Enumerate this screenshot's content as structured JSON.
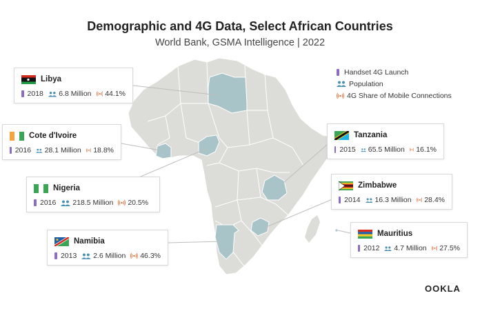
{
  "header": {
    "title": "Demographic and 4G Data, Select African Countries",
    "subtitle": "World Bank, GSMA Intelligence | 2022"
  },
  "legend": {
    "handset_label": "Handset 4G Launch",
    "population_label": "Population",
    "share_label": "4G Share of Mobile Connections"
  },
  "colors": {
    "land": "#dcdcd8",
    "highlight": "#a9c4c9",
    "border": "#ffffff",
    "phone_icon": "#8b6bc6",
    "people_icon": "#4a8fb3",
    "signal_icon": "#e07a4a"
  },
  "countries": [
    {
      "name": "Libya",
      "year": "2018",
      "population": "6.8 Million",
      "share": "44.1%",
      "flag": "libya-flag-icon"
    },
    {
      "name": "Cote d'Ivoire",
      "year": "2016",
      "population": "28.1 Million",
      "share": "18.8%",
      "flag": "cote-divoire-flag-icon"
    },
    {
      "name": "Nigeria",
      "year": "2016",
      "population": "218.5 Million",
      "share": "20.5%",
      "flag": "nigeria-flag-icon"
    },
    {
      "name": "Namibia",
      "year": "2013",
      "population": "2.6 Million",
      "share": "46.3%",
      "flag": "namibia-flag-icon"
    },
    {
      "name": "Tanzania",
      "year": "2015",
      "population": "65.5 Million",
      "share": "16.1%",
      "flag": "tanzania-flag-icon"
    },
    {
      "name": "Zimbabwe",
      "year": "2014",
      "population": "16.3 Million",
      "share": "28.4%",
      "flag": "zimbabwe-flag-icon"
    },
    {
      "name": "Mauritius",
      "year": "2012",
      "population": "4.7 Million",
      "share": "27.5%",
      "flag": "mauritius-flag-icon"
    }
  ],
  "brand": {
    "logo_text": "OOKLA"
  }
}
